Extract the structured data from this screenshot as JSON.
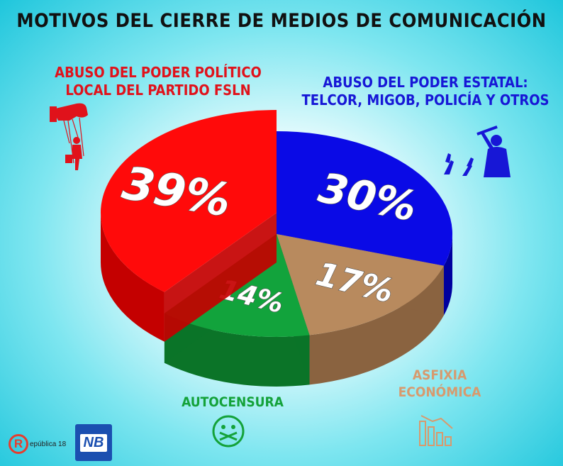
{
  "chart_data": {
    "type": "pie",
    "title": "MOTIVOS DEL CIERRE DE MEDIOS DE COMUNICACIÓN",
    "slices": [
      {
        "label_lines": [
          "ABUSO DEL PODER POLÍTICO",
          "LOCAL DEL PARTIDO FSLN"
        ],
        "value": 39,
        "value_label": "39%",
        "color": "#ff0a0a",
        "side_color": "#c40000"
      },
      {
        "label_lines": [
          "ABUSO DEL PODER ESTATAL:",
          "TELCOR, MIGOB, POLICÍA Y OTROS"
        ],
        "value": 30,
        "value_label": "30%",
        "color": "#0a0ae6",
        "side_color": "#00009e"
      },
      {
        "label_lines": [
          "ASFIXIA",
          "ECONÓMICA"
        ],
        "value": 17,
        "value_label": "17%",
        "color": "#b88a5e",
        "side_color": "#8a6340"
      },
      {
        "label_lines": [
          "AUTOCENSURA"
        ],
        "value": 14,
        "value_label": "14%",
        "color": "#12a33c",
        "side_color": "#0b7428"
      }
    ]
  },
  "icons": {
    "red": "puppeteer-hand-icon",
    "blue": "police-baton-icon",
    "green": "gagged-face-icon",
    "tan": "declining-bars-icon"
  },
  "logos": {
    "republica": "epública 18",
    "republica_letter": "R",
    "nb": "NB"
  }
}
